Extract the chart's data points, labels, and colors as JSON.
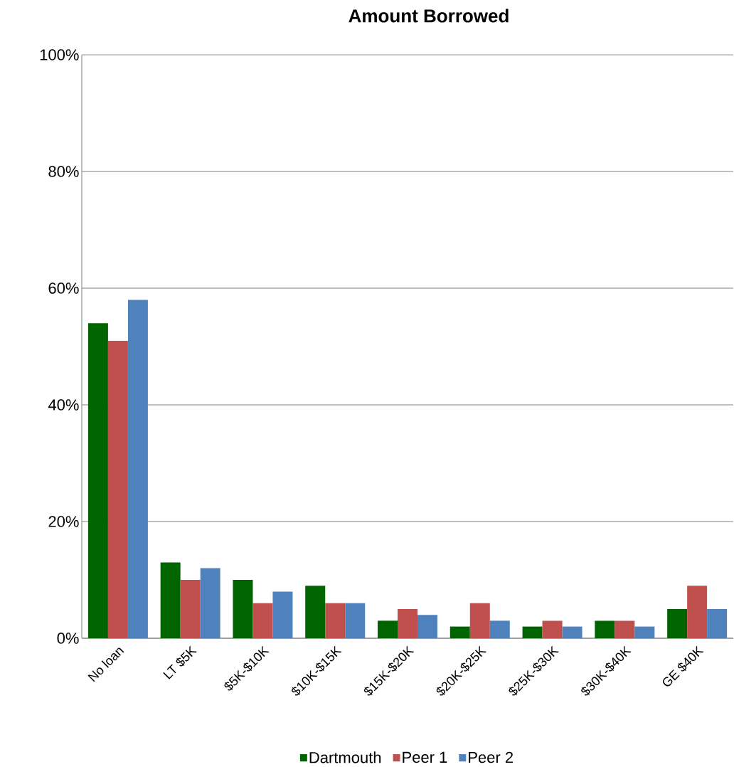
{
  "chart_data": {
    "type": "bar",
    "title": "Amount Borrowed",
    "categories": [
      "No loan",
      "LT $5K",
      "$5K-$10K",
      "$10K-$15K",
      "$15K-$20K",
      "$20K-$25K",
      "$25K-$30K",
      "$30K-$40K",
      "GE $40K"
    ],
    "series": [
      {
        "name": "Dartmouth",
        "color": "#006400",
        "values": [
          54,
          13,
          10,
          9,
          3,
          2,
          2,
          3,
          5
        ]
      },
      {
        "name": "Peer 1",
        "color": "#c0504d",
        "values": [
          51,
          10,
          6,
          6,
          5,
          6,
          3,
          3,
          9
        ]
      },
      {
        "name": "Peer 2",
        "color": "#4f81bd",
        "values": [
          58,
          12,
          8,
          6,
          4,
          3,
          2,
          2,
          5
        ]
      }
    ],
    "ylim": [
      0,
      100
    ],
    "yticks": [
      {
        "value": 0,
        "label": "0%"
      },
      {
        "value": 20,
        "label": "20%"
      },
      {
        "value": 40,
        "label": "40%"
      },
      {
        "value": 60,
        "label": "60%"
      },
      {
        "value": 80,
        "label": "80%"
      },
      {
        "value": 100,
        "label": "100%"
      }
    ],
    "grid": "y",
    "legend": "bottom"
  }
}
